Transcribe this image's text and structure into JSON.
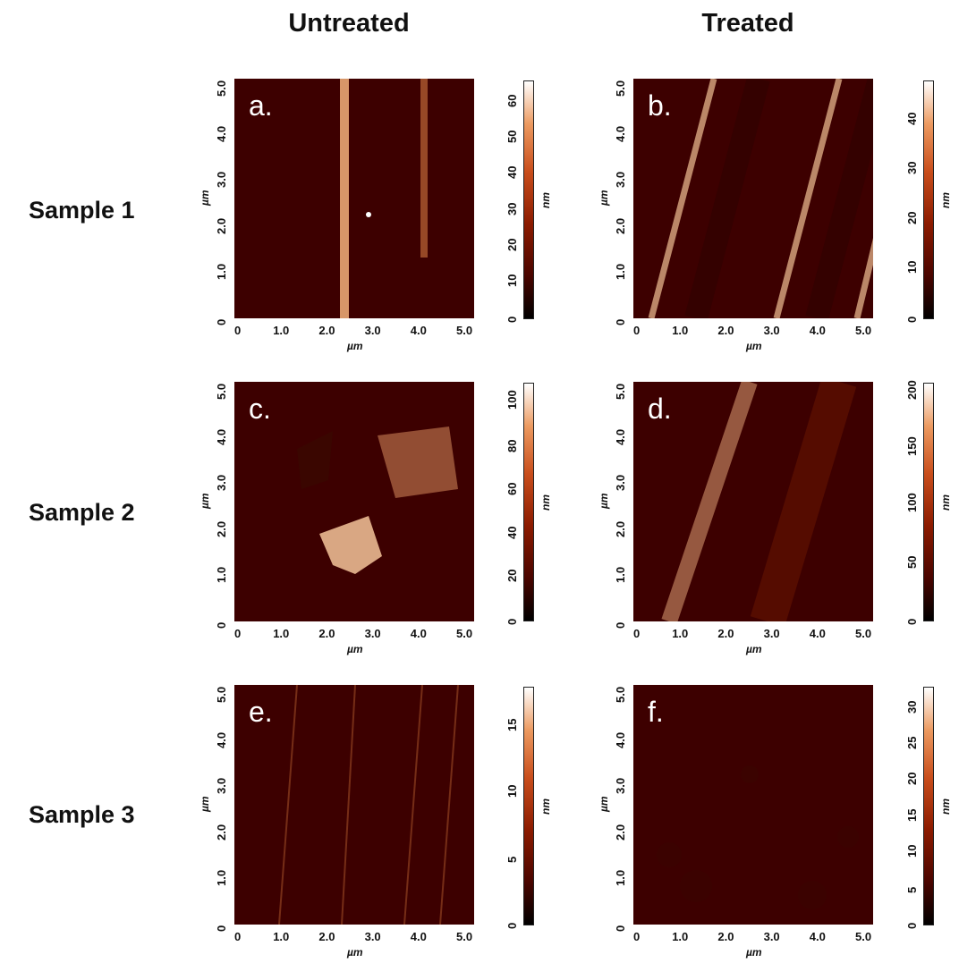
{
  "columns": {
    "untreated": "Untreated",
    "treated": "Treated"
  },
  "rows": [
    "Sample 1",
    "Sample 2",
    "Sample 3"
  ],
  "axis_unit": "µm",
  "colorbar_unit": "nm",
  "axis_ticks": [
    "0",
    "1.0",
    "2.0",
    "3.0",
    "4.0",
    "5.0"
  ],
  "panels": [
    {
      "letter": "a.",
      "colorbar_ticks": [
        "0",
        "10",
        "20",
        "30",
        "40",
        "50",
        "60"
      ],
      "colorbar_max": 66
    },
    {
      "letter": "b.",
      "colorbar_ticks": [
        "0",
        "10",
        "20",
        "30",
        "40"
      ],
      "colorbar_max": 48
    },
    {
      "letter": "c.",
      "colorbar_ticks": [
        "0",
        "20",
        "40",
        "60",
        "80",
        "100"
      ],
      "colorbar_max": 110
    },
    {
      "letter": "d.",
      "colorbar_ticks": [
        "0",
        "50",
        "100",
        "150",
        "200"
      ],
      "colorbar_max": 210
    },
    {
      "letter": "e.",
      "colorbar_ticks": [
        "0",
        "5",
        "10",
        "15"
      ],
      "colorbar_max": 18
    },
    {
      "letter": "f.",
      "colorbar_ticks": [
        "0",
        "5",
        "10",
        "15",
        "20",
        "25",
        "30"
      ],
      "colorbar_max": 33
    }
  ]
}
